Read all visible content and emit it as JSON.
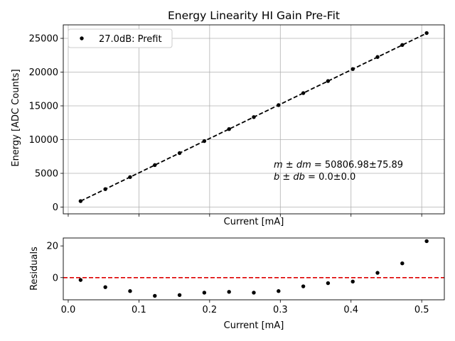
{
  "chart_data": [
    {
      "type": "scatter",
      "title": "Energy Linearity HI Gain Pre-Fit",
      "xlabel": "Current [mA]",
      "ylabel": "Energy [ADC Counts]",
      "xlim": [
        -0.007,
        0.532
      ],
      "ylim": [
        -1000,
        27000
      ],
      "xticks": [
        0.0,
        0.1,
        0.2,
        0.3,
        0.4,
        0.5
      ],
      "yticks": [
        0,
        5000,
        10000,
        15000,
        20000,
        25000
      ],
      "ytick_labels": [
        "0",
        "5000",
        "10000",
        "15000",
        "20000",
        "25000"
      ],
      "show_xtick_labels": false,
      "grid": true,
      "legend": {
        "placement": "upper-left",
        "entries": [
          "27.0dB: Prefit"
        ]
      },
      "series": [
        {
          "name": "27.0dB: Prefit",
          "marker": "dot",
          "color": "#000000",
          "x": [
            0.0175,
            0.0525,
            0.0875,
            0.1225,
            0.1575,
            0.1925,
            0.2275,
            0.2625,
            0.2975,
            0.3325,
            0.3675,
            0.4025,
            0.4375,
            0.4725,
            0.507
          ],
          "y": [
            888,
            2667,
            4446,
            6224,
            8001,
            9780,
            11558,
            13336,
            15115,
            16893,
            18674,
            20452,
            22237,
            24018,
            25787
          ]
        }
      ],
      "fit_line": {
        "style": "dashed",
        "color": "#000000",
        "slope": 50806.98,
        "intercept": 0.0
      },
      "annotation": {
        "line1_math": "m ± dm",
        "line1_value": " = 50806.98±75.89",
        "line2_math": "b ± db",
        "line2_value": " = 0.0±0.0"
      }
    },
    {
      "type": "scatter",
      "title": "",
      "xlabel": "Current [mA]",
      "ylabel": "Residuals",
      "xlim": [
        -0.007,
        0.532
      ],
      "ylim": [
        -14,
        25
      ],
      "xticks": [
        0.0,
        0.1,
        0.2,
        0.3,
        0.4,
        0.5
      ],
      "xtick_labels": [
        "0.0",
        "0.1",
        "0.2",
        "0.3",
        "0.4",
        "0.5"
      ],
      "yticks": [
        0,
        20
      ],
      "ytick_labels": [
        "0",
        "20"
      ],
      "grid": false,
      "reference_line": {
        "y": 0,
        "style": "dashed",
        "color": "#dd0000"
      },
      "series": [
        {
          "marker": "dot",
          "color": "#000000",
          "x": [
            0.0175,
            0.0525,
            0.0875,
            0.1225,
            0.1575,
            0.1925,
            0.2275,
            0.2625,
            0.2975,
            0.3325,
            0.3675,
            0.4025,
            0.4375,
            0.4725,
            0.507
          ],
          "y": [
            -1.5,
            -6.0,
            -8.5,
            -11.5,
            -11.0,
            -9.5,
            -9.0,
            -9.5,
            -8.5,
            -5.5,
            -3.5,
            -2.5,
            3.0,
            9.0,
            23.0
          ]
        }
      ]
    }
  ]
}
